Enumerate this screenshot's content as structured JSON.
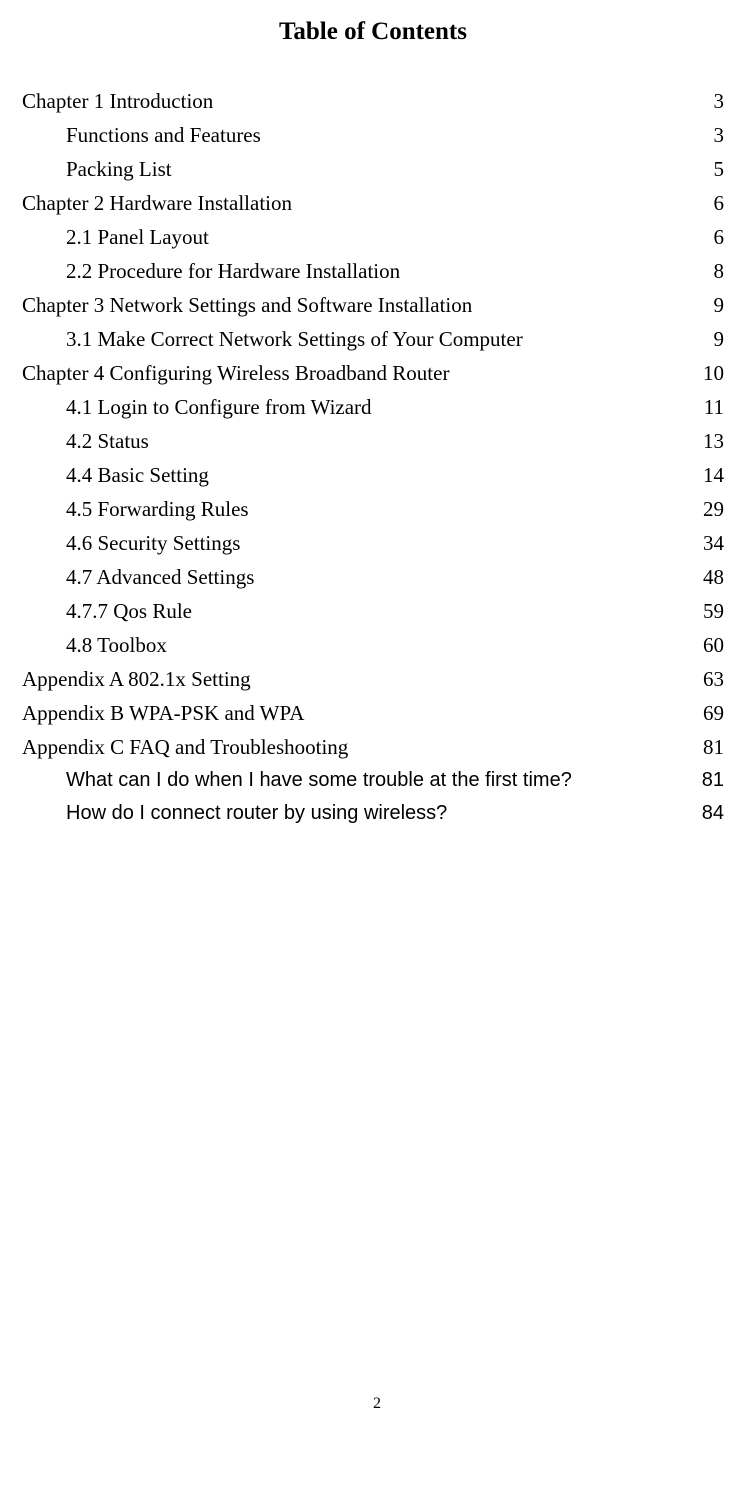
{
  "title": "Table of Contents",
  "page_number": "2",
  "entries": [
    {
      "label": "Chapter 1    Introduction",
      "page": "3",
      "level": 0,
      "font": "serif"
    },
    {
      "label": "Functions and Features",
      "page": "3",
      "level": 1,
      "font": "serif"
    },
    {
      "label": "Packing List",
      "page": "5",
      "level": 1,
      "font": "serif"
    },
    {
      "label": "Chapter 2    Hardware Installation",
      "page": "6",
      "level": 0,
      "font": "serif"
    },
    {
      "label": "2.1 Panel Layout",
      "page": "6",
      "level": 1,
      "font": "serif"
    },
    {
      "label": "2.2 Procedure for Hardware Installation",
      "page": "8",
      "level": 1,
      "font": "serif"
    },
    {
      "label": "Chapter 3    Network Settings and Software Installation",
      "page": "9",
      "level": 0,
      "font": "serif"
    },
    {
      "label": "3.1 Make Correct Network Settings of Your Computer",
      "page": "9",
      "level": 1,
      "font": "serif"
    },
    {
      "label": "Chapter 4    Configuring Wireless Broadband Router",
      "page": "10",
      "level": 0,
      "font": "serif"
    },
    {
      "label": "4.1 Login to Configure from Wizard",
      "page": "11",
      "level": 1,
      "font": "serif"
    },
    {
      "label": "4.2 Status",
      "page": "13",
      "level": 1,
      "font": "serif"
    },
    {
      "label": "4.4 Basic Setting",
      "page": "14",
      "level": 1,
      "font": "serif"
    },
    {
      "label": "4.5 Forwarding Rules",
      "page": "29",
      "level": 1,
      "font": "serif"
    },
    {
      "label": "4.6 Security Settings",
      "page": "34",
      "level": 1,
      "font": "serif"
    },
    {
      "label": "4.7 Advanced Settings",
      "page": "48",
      "level": 1,
      "font": "serif"
    },
    {
      "label": "4.7.7 Qos Rule",
      "page": "59",
      "level": 1,
      "font": "serif"
    },
    {
      "label": "4.8 Toolbox",
      "page": "60",
      "level": 1,
      "font": "serif"
    },
    {
      "label": "Appendix A    802.1x Setting",
      "page": "63",
      "level": 0,
      "font": "serif"
    },
    {
      "label": "Appendix B    WPA-PSK and WPA",
      "page": "69",
      "level": 0,
      "font": "serif"
    },
    {
      "label": "Appendix C    FAQ and Troubleshooting",
      "page": "81",
      "level": 0,
      "font": "serif"
    },
    {
      "label": "What can I do when I have some trouble at the first time?",
      "page": "81",
      "level": 1,
      "font": "sans"
    },
    {
      "label": "How do I connect router by using wireless?",
      "page": "84",
      "level": 1,
      "font": "sans"
    }
  ]
}
